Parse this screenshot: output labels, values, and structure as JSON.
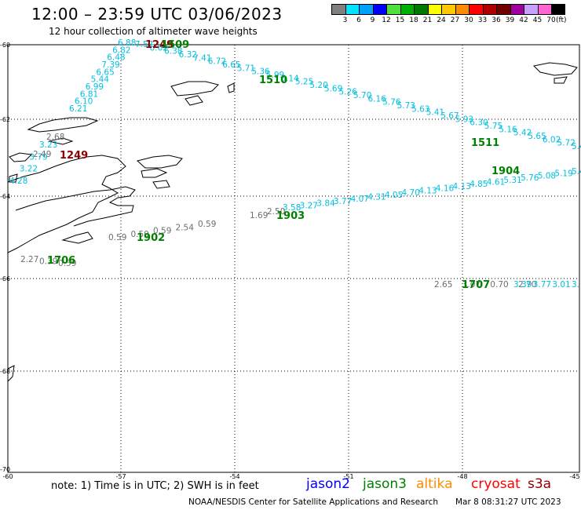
{
  "header": {
    "title": "12:00 – 23:59 UTC 03/06/2023",
    "subtitle": "12 hour collection of altimeter wave heights"
  },
  "legend": {
    "colors": [
      "#808080",
      "#00e5ff",
      "#00a0ff",
      "#0000ff",
      "#4fe03c",
      "#00b000",
      "#007800",
      "#ffff00",
      "#ffc800",
      "#ff8c00",
      "#ff0000",
      "#b00000",
      "#700000",
      "#a000a0",
      "#c8a0ff",
      "#ff64d2",
      "#000000"
    ],
    "labels": [
      "3",
      "6",
      "9",
      "12",
      "15",
      "18",
      "21",
      "24",
      "27",
      "30",
      "33",
      "36",
      "39",
      "42",
      "45",
      "70"
    ],
    "unit": "(ft)"
  },
  "map": {
    "lat_labels": [
      "-60",
      "-62",
      "-64",
      "-66",
      "-68",
      "-70"
    ],
    "lon_labels": [
      "-60",
      "-57",
      "-54",
      "-51",
      "-48",
      "-45"
    ],
    "passes": [
      {
        "label": "1249",
        "color": "#8b0000",
        "label_pos": "mid"
      },
      {
        "label": "1249",
        "color": "#8b0000",
        "label_pos": "top"
      },
      {
        "label": "1509",
        "color": "#008000",
        "label_pos": "top"
      },
      {
        "label": "1510",
        "color": "#008000",
        "label_pos": "mid"
      },
      {
        "label": "1511",
        "color": "#008000",
        "label_pos": "mid"
      },
      {
        "label": "1904",
        "color": "#008000",
        "label_pos": "mid"
      },
      {
        "label": "1903",
        "color": "#008000",
        "label_pos": "mid"
      },
      {
        "label": "1902",
        "color": "#008000",
        "label_pos": "mid"
      },
      {
        "label": "1706",
        "color": "#008000",
        "label_pos": "mid"
      },
      {
        "label": "1707",
        "color": "#008000",
        "label_pos": "mid"
      }
    ],
    "track_values": {
      "track_a": [
        "6.88",
        "6.82",
        "6.48",
        "7.39",
        "6.65",
        "5.44",
        "6.99",
        "6.81",
        "6.10",
        "6.21",
        "3.23",
        "3.79",
        "3.22",
        "4.28"
      ],
      "track_a_gray": [
        "2.68",
        "2.49"
      ],
      "track_b": [
        "7.57",
        "6.62",
        "6.38",
        "6.32",
        "7.41",
        "6.72",
        "6.65",
        "5.71",
        "5.36",
        "5.99",
        "6.14",
        "5.25",
        "5.20",
        "5.69",
        "5.26",
        "5.70",
        "6.16",
        "5.76",
        "5.73",
        "5.63",
        "5.41",
        "5.67",
        "5.93",
        "6.30",
        "5.75",
        "5.16",
        "5.42",
        "5.65",
        "6.02",
        "5.72",
        "5.43"
      ],
      "track_c": [
        "3.58",
        "3.27",
        "3.84",
        "3.77",
        "4.07",
        "4.31",
        "4.05",
        "4.70",
        "4.13",
        "4.16",
        "4.13",
        "4.85",
        "4.61",
        "5.31",
        "5.76",
        "5.08",
        "5.19",
        "5.4"
      ],
      "track_c_gray": [
        "1.69",
        "2.50"
      ],
      "track_d": [
        "0.59",
        "0.59",
        "0.59",
        "2.54",
        "0.59"
      ],
      "track_e": [
        "2.27",
        "0.39",
        "0.59"
      ],
      "track_f_gray": [
        "2.65",
        "3.07",
        "0.70",
        "2.70"
      ],
      "track_f": [
        "3.39",
        "3.77",
        "3.01",
        "3."
      ]
    }
  },
  "footer": {
    "note": "note: 1) Time is in UTC; 2) SWH is in feet",
    "satellites": [
      {
        "name": "jason2",
        "color": "#0000ff"
      },
      {
        "name": "jason3",
        "color": "#008000"
      },
      {
        "name": "altika",
        "color": "#ff8c00"
      },
      {
        "name": "cryosat",
        "color": "#ff0000"
      },
      {
        "name": "s3a",
        "color": "#8b0000"
      }
    ],
    "credit": "NOAA/NESDIS Center for Satellite Applications and Research",
    "timestamp": "Mar  8 08:31:27 UTC 2023"
  }
}
